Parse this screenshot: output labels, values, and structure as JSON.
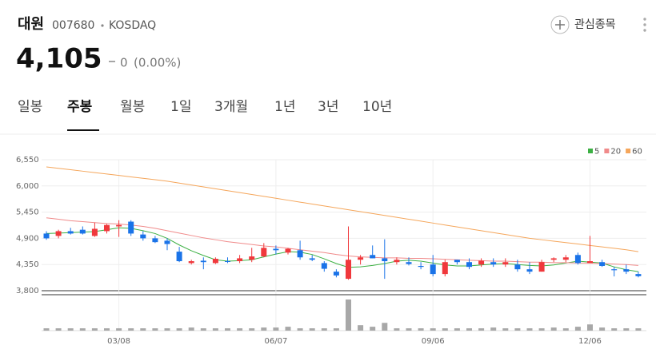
{
  "header": {
    "name": "대원",
    "code": "007680",
    "market": "KOSDAQ",
    "watch": "관심종목",
    "price": "4,105",
    "change": "0",
    "change_rate": "(0.00%)"
  },
  "tabs": [
    "일봉",
    "주봉",
    "월봉",
    "1일",
    "3개월",
    "1년",
    "3년",
    "10년"
  ],
  "active_tab": 1,
  "chart_data": {
    "type": "candlestick",
    "categories": [
      null,
      null,
      null,
      null,
      null,
      null,
      "03/08",
      null,
      null,
      null,
      null,
      null,
      null,
      null,
      null,
      null,
      null,
      null,
      null,
      "06/07",
      null,
      null,
      null,
      null,
      null,
      null,
      null,
      null,
      null,
      null,
      null,
      null,
      "09/06",
      null,
      null,
      null,
      null,
      null,
      null,
      null,
      null,
      null,
      null,
      null,
      null,
      "12/06",
      null,
      null,
      null,
      null
    ],
    "open": [
      5000,
      4950,
      5050,
      5080,
      4950,
      5050,
      5150,
      5250,
      4980,
      4900,
      4850,
      4620,
      4380,
      4430,
      4380,
      4420,
      4420,
      4450,
      4520,
      4680,
      4600,
      4650,
      4480,
      4380,
      4200,
      4050,
      4450,
      4550,
      4480,
      4400,
      4400,
      4320,
      4350,
      4150,
      4450,
      4400,
      4350,
      4400,
      4350,
      4350,
      4250,
      4200,
      4450,
      4450,
      4550,
      4380,
      4400,
      4250,
      4250,
      4150
    ],
    "high": [
      5050,
      5080,
      5120,
      5150,
      5230,
      5200,
      5280,
      5280,
      5050,
      4950,
      4900,
      4720,
      4450,
      4500,
      4500,
      4500,
      4550,
      4700,
      4800,
      4750,
      4700,
      4850,
      4550,
      4420,
      4250,
      5150,
      4550,
      4750,
      4880,
      4500,
      4500,
      4400,
      4550,
      4450,
      4450,
      4480,
      4480,
      4480,
      4480,
      4450,
      4400,
      4450,
      4500,
      4550,
      4600,
      4950,
      4450,
      4300,
      4350,
      4200
    ],
    "low": [
      4870,
      4900,
      4980,
      4980,
      4930,
      5000,
      4930,
      4950,
      4850,
      4800,
      4650,
      4400,
      4350,
      4250,
      4360,
      4380,
      4380,
      4400,
      4500,
      4560,
      4560,
      4450,
      4420,
      4200,
      4080,
      4030,
      4350,
      4480,
      4050,
      4350,
      4330,
      4250,
      4100,
      4100,
      4350,
      4250,
      4300,
      4300,
      4300,
      4200,
      4150,
      4200,
      4400,
      4400,
      4350,
      4380,
      4300,
      4100,
      4150,
      4080
    ],
    "close": [
      4900,
      5050,
      5000,
      5000,
      5100,
      5180,
      5180,
      5000,
      4900,
      4820,
      4780,
      4420,
      4420,
      4400,
      4470,
      4410,
      4480,
      4520,
      4700,
      4650,
      4680,
      4500,
      4450,
      4260,
      4120,
      4450,
      4500,
      4480,
      4420,
      4450,
      4360,
      4300,
      4150,
      4400,
      4400,
      4300,
      4430,
      4350,
      4400,
      4250,
      4200,
      4400,
      4480,
      4500,
      4380,
      4420,
      4320,
      4230,
      4200,
      4105
    ],
    "up_color": "#f0383c",
    "down_color": "#1a73e8",
    "series": [
      {
        "name": "5",
        "color": "#3cb043",
        "values": [
          5000,
          5010,
          5020,
          5030,
          5040,
          5080,
          5120,
          5110,
          5060,
          5000,
          4900,
          4760,
          4640,
          4540,
          4450,
          4420,
          4430,
          4450,
          4510,
          4570,
          4620,
          4610,
          4560,
          4470,
          4370,
          4290,
          4300,
          4330,
          4370,
          4420,
          4440,
          4420,
          4380,
          4340,
          4320,
          4320,
          4340,
          4360,
          4370,
          4350,
          4330,
          4320,
          4340,
          4380,
          4420,
          4400,
          4380,
          4300,
          4240,
          4200
        ]
      },
      {
        "name": "20",
        "color": "#f08a8a",
        "values": [
          5330,
          5300,
          5270,
          5250,
          5230,
          5210,
          5200,
          5180,
          5150,
          5110,
          5060,
          5010,
          4960,
          4910,
          4870,
          4830,
          4800,
          4770,
          4740,
          4720,
          4690,
          4660,
          4630,
          4600,
          4560,
          4530,
          4510,
          4500,
          4490,
          4490,
          4480,
          4480,
          4470,
          4460,
          4450,
          4440,
          4430,
          4420,
          4420,
          4410,
          4400,
          4400,
          4390,
          4390,
          4380,
          4380,
          4370,
          4360,
          4350,
          4330
        ]
      },
      {
        "name": "60",
        "color": "#f5a65b",
        "values": [
          6400,
          6370,
          6340,
          6310,
          6280,
          6250,
          6220,
          6190,
          6160,
          6130,
          6100,
          6060,
          6020,
          5980,
          5940,
          5900,
          5860,
          5820,
          5780,
          5740,
          5700,
          5660,
          5620,
          5580,
          5540,
          5500,
          5460,
          5420,
          5380,
          5340,
          5300,
          5260,
          5220,
          5180,
          5140,
          5100,
          5060,
          5020,
          4980,
          4940,
          4900,
          4870,
          4840,
          4810,
          4780,
          4750,
          4720,
          4690,
          4660,
          4620
        ]
      }
    ],
    "volume": [
      3,
      3,
      3,
      3,
      3,
      3,
      3,
      3,
      3,
      3,
      3,
      3,
      4,
      3,
      3,
      3,
      3,
      3,
      4,
      4,
      5,
      3,
      3,
      3,
      3,
      40,
      7,
      5,
      10,
      3,
      3,
      3,
      3,
      3,
      3,
      3,
      3,
      4,
      3,
      3,
      3,
      3,
      4,
      3,
      5,
      8,
      4,
      3,
      3,
      3
    ],
    "volume_color": "#a8a8a8",
    "ylim": [
      3800,
      6550
    ],
    "yticks": [
      {
        "value": 3800,
        "label": "3,800"
      },
      {
        "value": 4350,
        "label": "4,350"
      },
      {
        "value": 4900,
        "label": "4,900"
      },
      {
        "value": 5450,
        "label": "5,450"
      },
      {
        "value": 6000,
        "label": "6,000"
      },
      {
        "value": 6550,
        "label": "6,550"
      }
    ],
    "grid": true,
    "legend": "top-right"
  }
}
